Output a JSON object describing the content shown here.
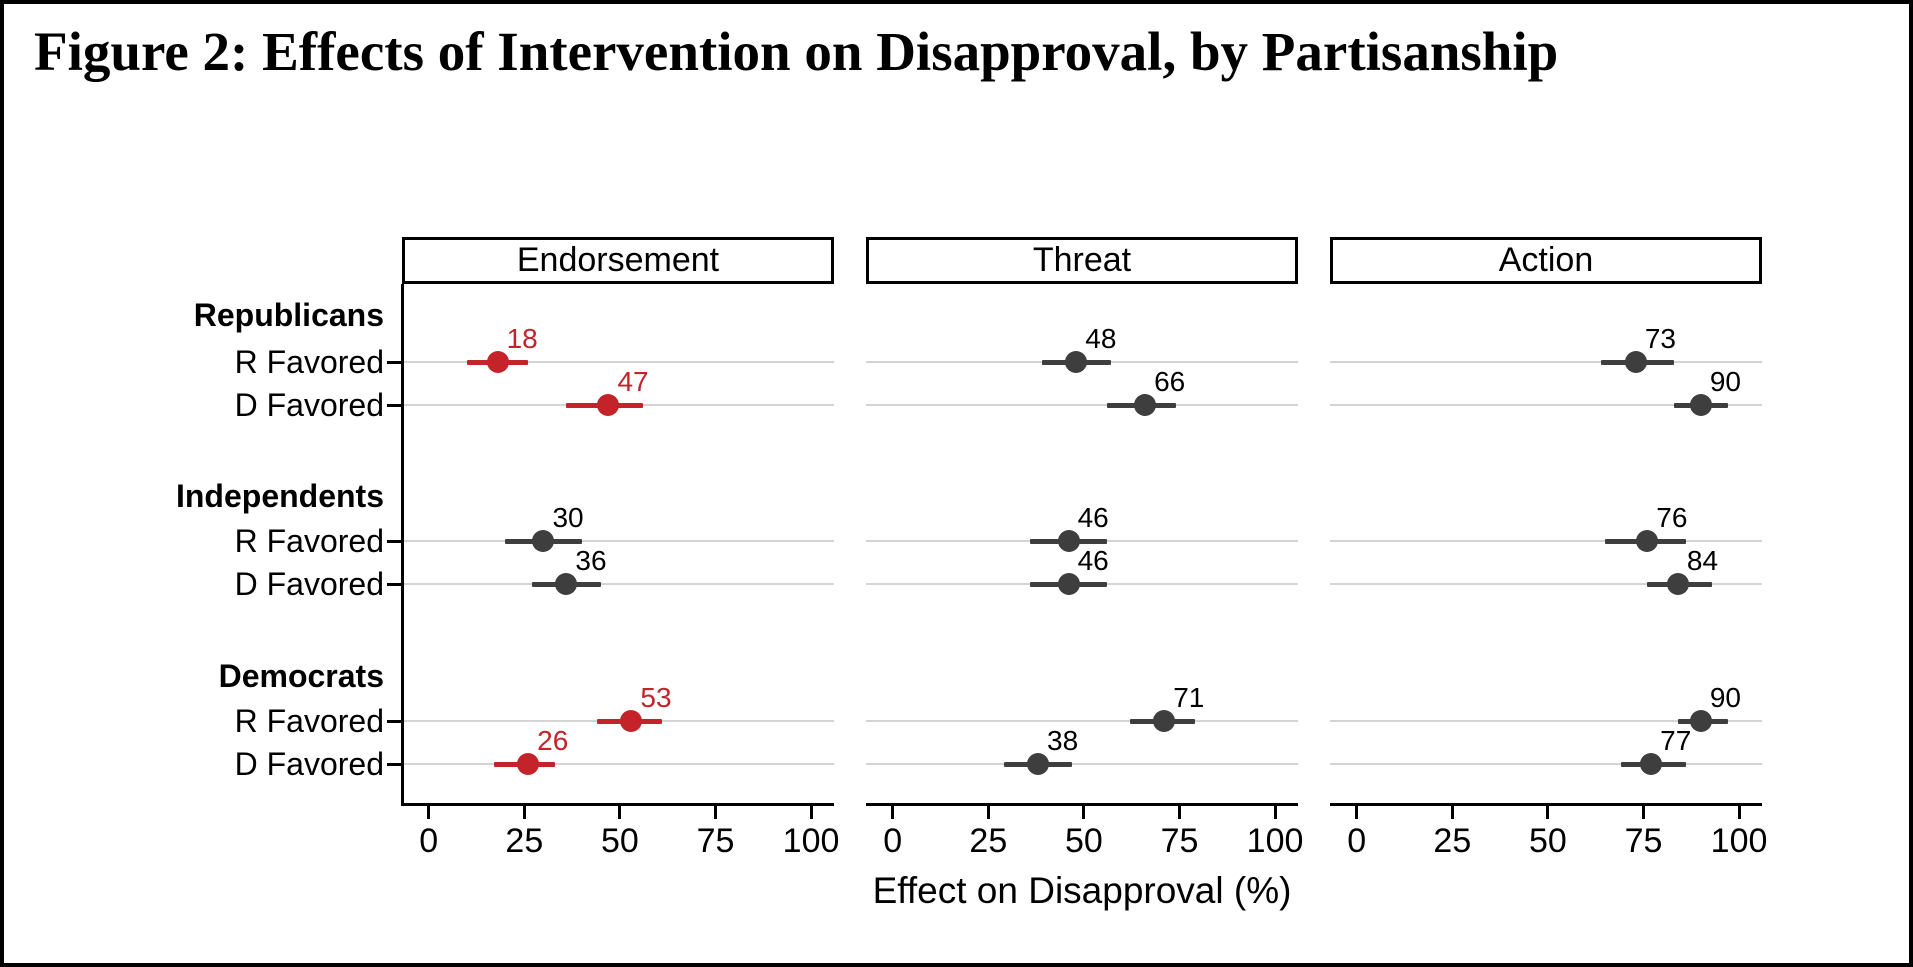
{
  "colors": {
    "highlight": "#c4232a",
    "default": "#3e3e3e",
    "gridline": "#d4d4d4",
    "axis": "#000000",
    "label_default": "#000000"
  },
  "chart_data": {
    "type": "scatter",
    "subtype": "dot-plot-with-confidence-intervals",
    "title": "Figure 2: Effects of Intervention on Disapproval, by Partisanship",
    "xlabel": "Effect on Disapproval (%)",
    "x_ticks": [
      0,
      25,
      50,
      75,
      100
    ],
    "xlim": [
      -7,
      106
    ],
    "grid": "horizontal-per-row",
    "legend": "none",
    "groups": [
      "Republicans",
      "Independents",
      "Democrats"
    ],
    "rows": [
      "R Favored",
      "D Favored"
    ],
    "panels": [
      {
        "label": "Endorsement",
        "points": [
          {
            "group": "Republicans",
            "row": "R Favored",
            "value": 18,
            "ci": [
              10,
              26
            ],
            "highlighted": true
          },
          {
            "group": "Republicans",
            "row": "D Favored",
            "value": 47,
            "ci": [
              36,
              56
            ],
            "highlighted": true
          },
          {
            "group": "Independents",
            "row": "R Favored",
            "value": 30,
            "ci": [
              20,
              40
            ],
            "highlighted": false
          },
          {
            "group": "Independents",
            "row": "D Favored",
            "value": 36,
            "ci": [
              27,
              45
            ],
            "highlighted": false
          },
          {
            "group": "Democrats",
            "row": "R Favored",
            "value": 53,
            "ci": [
              44,
              61
            ],
            "highlighted": true
          },
          {
            "group": "Democrats",
            "row": "D Favored",
            "value": 26,
            "ci": [
              17,
              33
            ],
            "highlighted": true
          }
        ]
      },
      {
        "label": "Threat",
        "points": [
          {
            "group": "Republicans",
            "row": "R Favored",
            "value": 48,
            "ci": [
              39,
              57
            ],
            "highlighted": false
          },
          {
            "group": "Republicans",
            "row": "D Favored",
            "value": 66,
            "ci": [
              56,
              74
            ],
            "highlighted": false
          },
          {
            "group": "Independents",
            "row": "R Favored",
            "value": 46,
            "ci": [
              36,
              56
            ],
            "highlighted": false
          },
          {
            "group": "Independents",
            "row": "D Favored",
            "value": 46,
            "ci": [
              36,
              56
            ],
            "highlighted": false
          },
          {
            "group": "Democrats",
            "row": "R Favored",
            "value": 71,
            "ci": [
              62,
              79
            ],
            "highlighted": false
          },
          {
            "group": "Democrats",
            "row": "D Favored",
            "value": 38,
            "ci": [
              29,
              47
            ],
            "highlighted": false
          }
        ]
      },
      {
        "label": "Action",
        "points": [
          {
            "group": "Republicans",
            "row": "R Favored",
            "value": 73,
            "ci": [
              64,
              83
            ],
            "highlighted": false
          },
          {
            "group": "Republicans",
            "row": "D Favored",
            "value": 90,
            "ci": [
              83,
              97
            ],
            "highlighted": false
          },
          {
            "group": "Independents",
            "row": "R Favored",
            "value": 76,
            "ci": [
              65,
              86
            ],
            "highlighted": false
          },
          {
            "group": "Independents",
            "row": "D Favored",
            "value": 84,
            "ci": [
              76,
              93
            ],
            "highlighted": false
          },
          {
            "group": "Democrats",
            "row": "R Favored",
            "value": 90,
            "ci": [
              84,
              97
            ],
            "highlighted": false
          },
          {
            "group": "Democrats",
            "row": "D Favored",
            "value": 77,
            "ci": [
              69,
              86
            ],
            "highlighted": false
          }
        ]
      }
    ]
  }
}
